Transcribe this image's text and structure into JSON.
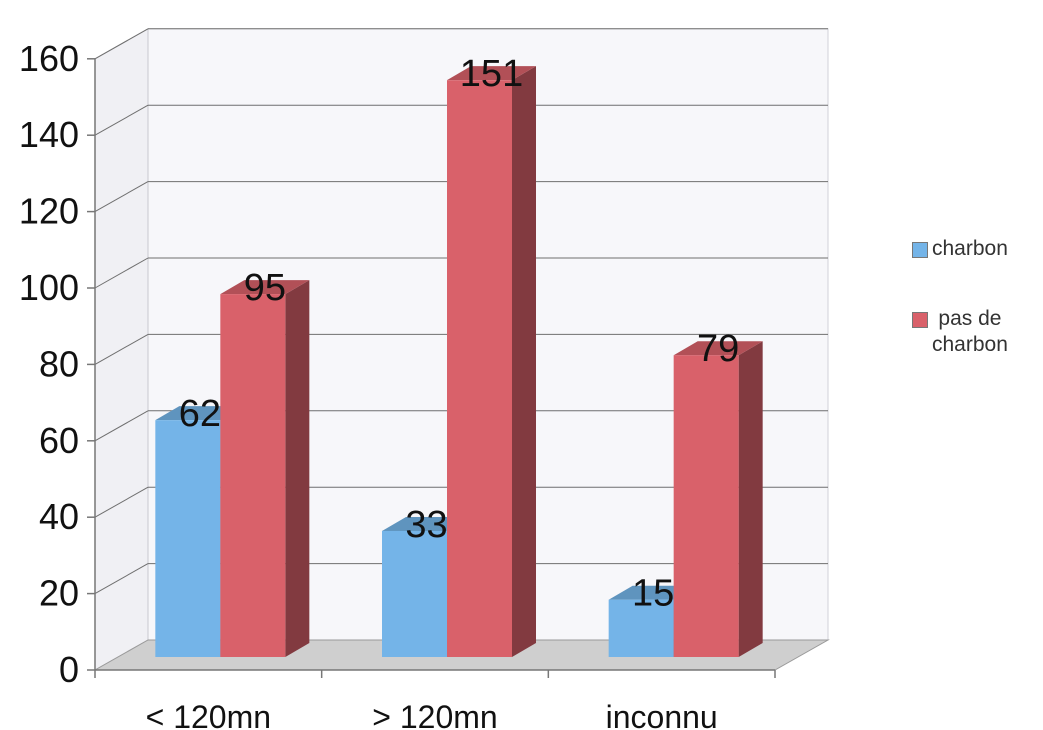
{
  "chart_data": {
    "type": "bar",
    "categories": [
      "< 120mn",
      "> 120mn",
      "inconnu"
    ],
    "series": [
      {
        "name": "charbon",
        "values": [
          62,
          33,
          15
        ],
        "color": "#74b4e8"
      },
      {
        "name": "pas de\ncharbon",
        "values": [
          95,
          151,
          79
        ],
        "color": "#d9616a"
      }
    ],
    "ylim": [
      0,
      160
    ],
    "yticks": [
      0,
      20,
      40,
      60,
      80,
      100,
      120,
      140,
      160
    ],
    "title": "",
    "xlabel": "",
    "ylabel": "",
    "grid": true,
    "legend_position": "right",
    "three_d": true
  }
}
